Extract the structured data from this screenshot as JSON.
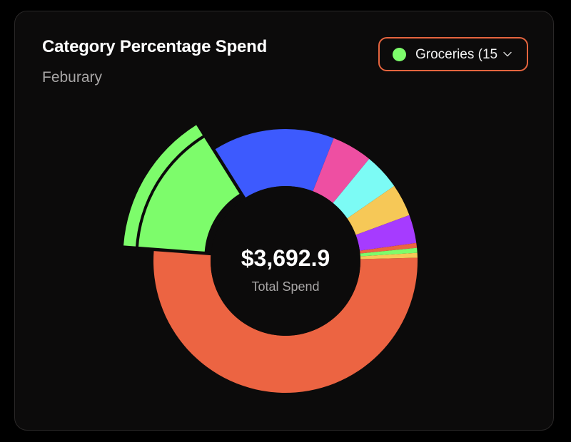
{
  "header": {
    "title": "Category Percentage Spend",
    "subtitle": "Feburary"
  },
  "dropdown": {
    "label": "Groceries (15",
    "dot_color": "#7dfc6b",
    "border_color": "#e6653f",
    "icon": "chevron-down-icon"
  },
  "center": {
    "value": "$3,692.9",
    "label": "Total Spend"
  },
  "chart_data": {
    "type": "pie",
    "variant": "donut",
    "total": 3692.9,
    "selected": 1,
    "series": [
      {
        "color": "#ec6442",
        "value": 52.0
      },
      {
        "color": "#7dfc6b",
        "value": 15.0
      },
      {
        "color": "#3d5afe",
        "value": 15.0
      },
      {
        "color": "#ee4fa2",
        "value": 5.0
      },
      {
        "color": "#7cfbf5",
        "value": 4.5
      },
      {
        "color": "#f6c857",
        "value": 4.0
      },
      {
        "color": "#a63bff",
        "value": 3.5
      },
      {
        "color": "#ec6442",
        "value": 0.6
      },
      {
        "color": "#7dfc6b",
        "value": 0.6
      },
      {
        "color": "#f6c857",
        "value": 0.6
      }
    ]
  }
}
